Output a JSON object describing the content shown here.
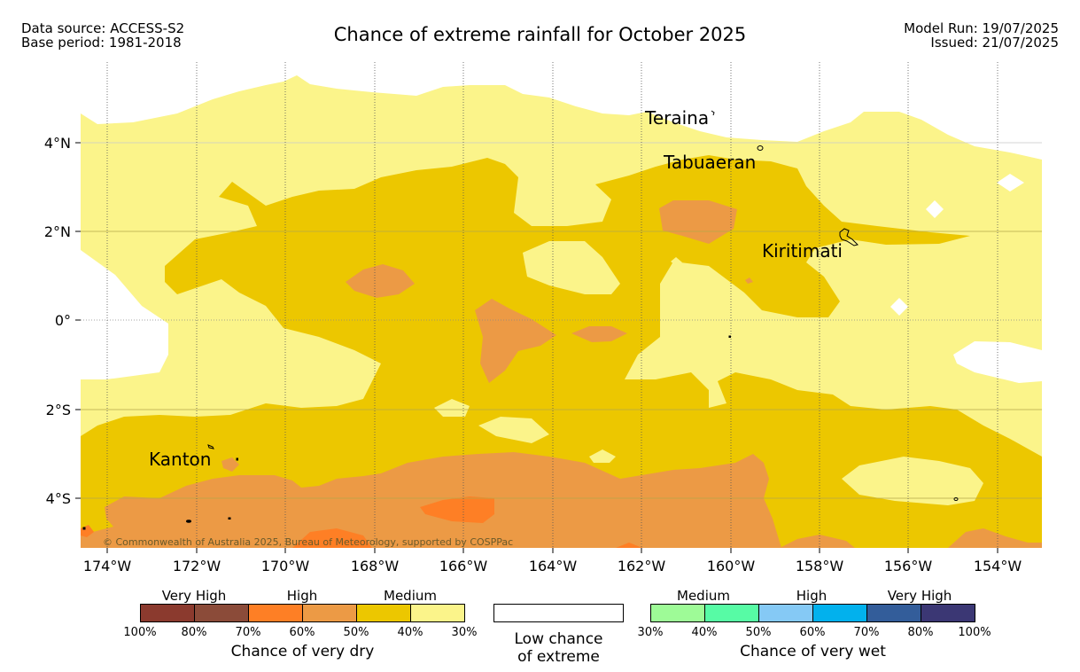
{
  "header": {
    "source": "Data source: ACCESS-S2",
    "base_period": "Base period: 1981-2018",
    "title": "Chance of extreme rainfall for October 2025",
    "model_run": "Model Run: 19/07/2025",
    "issued": "Issued: 21/07/2025"
  },
  "map": {
    "lon_ticks": [
      "174°W",
      "172°W",
      "170°W",
      "168°W",
      "166°W",
      "164°W",
      "162°W",
      "160°W",
      "158°W",
      "156°W",
      "154°W"
    ],
    "lat_ticks": [
      "4°N",
      "2°N",
      "0°",
      "2°S",
      "4°S"
    ],
    "places": [
      "Teraina",
      "Tabuaeran",
      "Kiritimati",
      "Kanton"
    ],
    "copyright": "© Commonwealth of Australia 2025, Bureau of Meteorology, supported by COSPPac",
    "colors": {
      "medium_dry": "#ecc700",
      "lowmed_dry": "#fbf48a",
      "high_dry": "#ec9a45",
      "higher_dry": "#fe7f25",
      "low_chance": "#ffffff"
    }
  },
  "legend": {
    "dry": {
      "groups": [
        "Very High",
        "High",
        "Medium"
      ],
      "ticks": [
        "100%",
        "80%",
        "70%",
        "60%",
        "50%",
        "40%",
        "30%"
      ],
      "caption": "Chance of very dry",
      "colors": [
        "#8b3a2e",
        "#8b4b39",
        "#fe7f25",
        "#ec9a45",
        "#ecc700",
        "#fbf48a"
      ]
    },
    "low": {
      "caption_line1": "Low chance",
      "caption_line2": "of extreme"
    },
    "wet": {
      "groups": [
        "Medium",
        "High",
        "Very High"
      ],
      "ticks": [
        "30%",
        "40%",
        "50%",
        "60%",
        "70%",
        "80%",
        "100%"
      ],
      "caption": "Chance of very wet",
      "colors": [
        "#9efb97",
        "#57fba5",
        "#85c9f5",
        "#02b1ed",
        "#335d9a",
        "#3b3774"
      ]
    }
  }
}
